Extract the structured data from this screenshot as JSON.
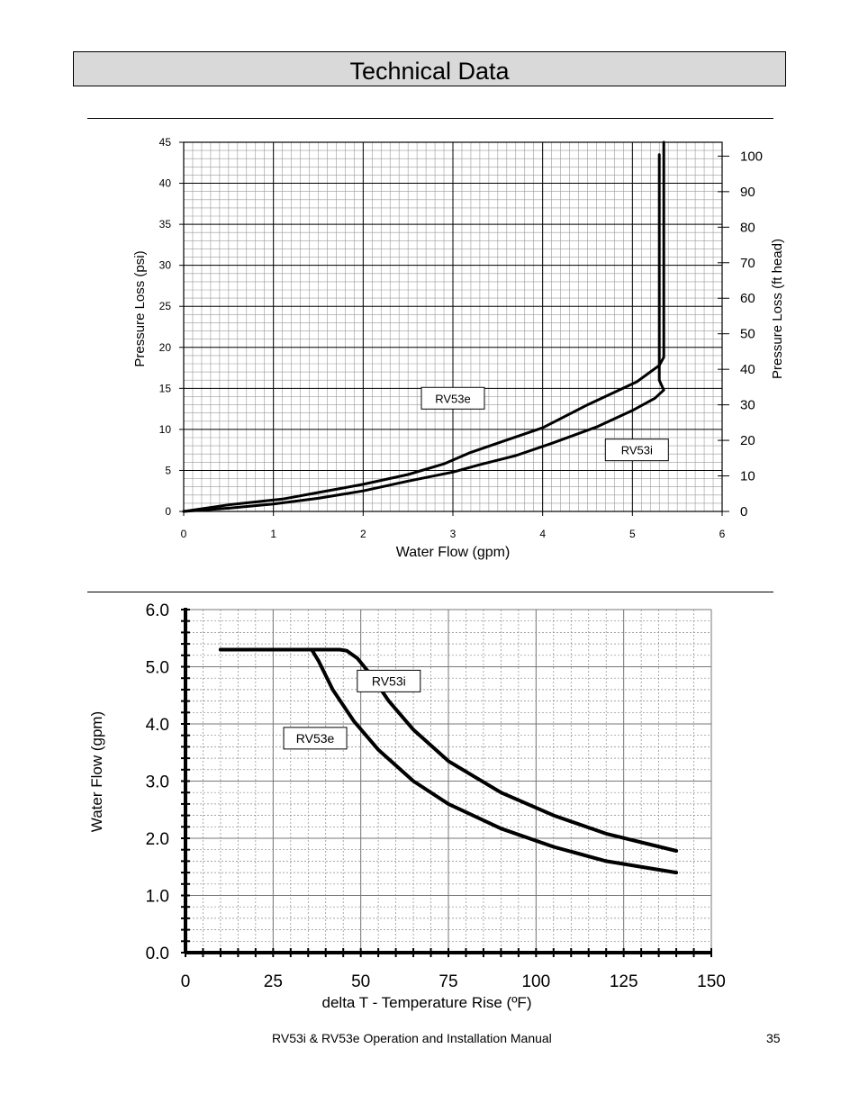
{
  "page": {
    "title": "Technical Data",
    "footer_text": "RV53i & RV53e Operation and Installation Manual",
    "page_number": "35"
  },
  "chart_data": [
    {
      "type": "line",
      "title": "",
      "xlabel": "Water Flow (gpm)",
      "ylabel": "Pressure Loss (psi)",
      "y2label": "Pressure Loss (ft head)",
      "xlim": [
        0,
        6
      ],
      "ylim": [
        0,
        45
      ],
      "y2lim": [
        0,
        103.9
      ],
      "xticks": [
        "0",
        "1",
        "2",
        "3",
        "4",
        "5",
        "6"
      ],
      "yticks": [
        "0",
        "5",
        "10",
        "15",
        "20",
        "25",
        "30",
        "35",
        "40",
        "45"
      ],
      "y2ticks": [
        "0",
        "10",
        "20",
        "30",
        "40",
        "50",
        "60",
        "70",
        "80",
        "90",
        "100"
      ],
      "grid": true,
      "series": [
        {
          "name": "RV53e",
          "x": [
            0,
            0.5,
            1.1,
            1.5,
            2.0,
            2.5,
            2.9,
            3.2,
            3.6,
            4.0,
            4.5,
            5.05,
            5.3,
            5.35,
            5.35,
            5.35
          ],
          "y": [
            0,
            0.8,
            1.5,
            2.3,
            3.3,
            4.5,
            5.8,
            7.2,
            8.7,
            10.2,
            13.0,
            15.8,
            17.8,
            18.8,
            30.0,
            45.0
          ]
        },
        {
          "name": "RV53i",
          "x": [
            0,
            0.5,
            1.0,
            1.5,
            2.0,
            2.5,
            3.0,
            3.3,
            3.7,
            4.1,
            4.6,
            5.0,
            5.25,
            5.35,
            5.3,
            5.3,
            5.3
          ],
          "y": [
            0,
            0.4,
            0.9,
            1.6,
            2.5,
            3.7,
            4.8,
            5.7,
            6.8,
            8.3,
            10.3,
            12.3,
            13.8,
            14.8,
            16.0,
            30.0,
            43.5
          ]
        }
      ],
      "annotations": [
        {
          "text": "RV53e",
          "x": 3.0,
          "y": 13.8
        },
        {
          "text": "RV53i",
          "x": 5.05,
          "y": 7.5
        }
      ]
    },
    {
      "type": "line",
      "title": "",
      "xlabel": "delta T - Temperature Rise (ºF)",
      "ylabel": "Water Flow (gpm)",
      "xlim": [
        0,
        150
      ],
      "ylim": [
        0,
        6
      ],
      "xticks": [
        "0",
        "25",
        "50",
        "75",
        "100",
        "125",
        "150"
      ],
      "yticks": [
        "0.0",
        "1.0",
        "2.0",
        "3.0",
        "4.0",
        "5.0",
        "6.0"
      ],
      "grid": true,
      "series": [
        {
          "name": "RV53i",
          "x": [
            10,
            44,
            46,
            49,
            53,
            58,
            65,
            75,
            90,
            105,
            120,
            140
          ],
          "y": [
            5.3,
            5.3,
            5.28,
            5.15,
            4.85,
            4.4,
            3.9,
            3.35,
            2.8,
            2.4,
            2.08,
            1.78
          ]
        },
        {
          "name": "RV53e",
          "x": [
            10,
            36,
            38,
            42,
            48,
            55,
            65,
            75,
            90,
            105,
            120,
            140
          ],
          "y": [
            5.3,
            5.3,
            5.1,
            4.6,
            4.05,
            3.55,
            3.0,
            2.6,
            2.17,
            1.85,
            1.6,
            1.4
          ]
        }
      ],
      "annotations": [
        {
          "text": "RV53i",
          "x": 58,
          "y": 4.75
        },
        {
          "text": "RV53e",
          "x": 37,
          "y": 3.75
        }
      ]
    }
  ]
}
